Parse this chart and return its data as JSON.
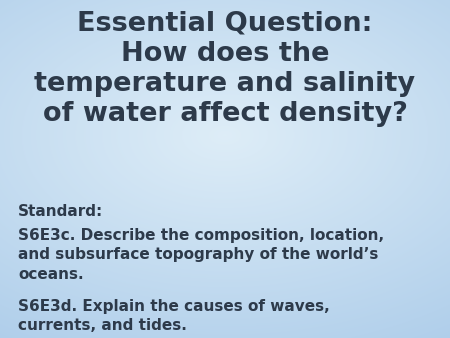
{
  "title_text": "Essential Question:\nHow does the\ntemperature and salinity\nof water affect density?",
  "standard_label": "Standard:",
  "standard1": "S6E3c. Describe the composition, location,\nand subsurface topography of the world’s\noceans.",
  "standard2": "S6E3d. Explain the causes of waves,\ncurrents, and tides.",
  "title_color": "#2d3a4a",
  "body_color": "#2d3a4a",
  "title_fontsize": 19.5,
  "label_fontsize": 11,
  "body_fontsize": 11,
  "bg_colors": [
    "#aacfe8",
    "#cce8f5",
    "#ddf0fa",
    "#cce8f5",
    "#aacfe8"
  ]
}
